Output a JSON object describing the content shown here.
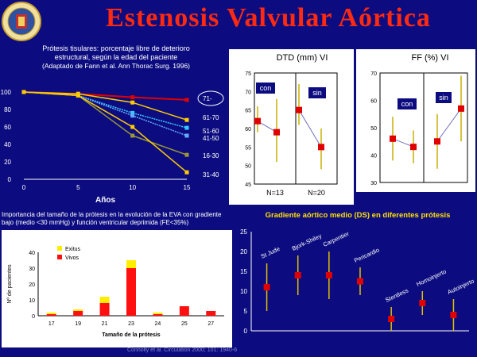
{
  "slide": {
    "title": "Estenosis  Valvular  Aórtica",
    "panel1_caption_line1": "Prótesis tisulares: porcentaje libre de deterioro",
    "panel1_caption_line2": "estructural, según la edad del paciente",
    "panel1_source": "(Adaptado de Fann et al. Ann Thorac Surg. 1996)",
    "panel2_caption": "Importancia del tamaño de la prótesis en la evolución de la EVA con gradiente bajo (medio <30 mmHg) y función ventricular deprimida (FE<35%)",
    "panel4_caption": "Gradiente aórtico medio (DS) en diferentes prótesis",
    "reference": "Connolly et al. Circulation 2000; 101: 1940-6"
  },
  "colors": {
    "background": "#0c0c80",
    "title": "#ff2a10",
    "panel": "#ffffff",
    "caption_yellow": "#ffe000"
  },
  "chart_data": [
    {
      "type": "line",
      "xlabel": "Años",
      "x": [
        0,
        5,
        10,
        15
      ],
      "xlim": [
        0,
        15
      ],
      "ylim": [
        0,
        100
      ],
      "yticks": [
        0,
        20,
        40,
        60,
        80,
        100
      ],
      "series": [
        {
          "name": "71-",
          "color": "#e00000",
          "values": [
            100,
            98,
            94,
            91
          ]
        },
        {
          "name": "61-70",
          "color": "#ffcc00",
          "values": [
            100,
            98,
            88,
            68
          ]
        },
        {
          "name": "51-60",
          "color": "#33ccff",
          "values": [
            100,
            96,
            76,
            59
          ]
        },
        {
          "name": "41-50",
          "color": "#66aaff",
          "values": [
            100,
            96,
            73,
            50
          ]
        },
        {
          "name": "16-30",
          "color": "#999933",
          "values": [
            100,
            96,
            50,
            28
          ]
        },
        {
          "name": "31-40",
          "color": "#ffcc00",
          "values": [
            100,
            96,
            60,
            8
          ]
        }
      ]
    },
    {
      "type": "bar",
      "xlabel": "Tamaño de la prótesis",
      "ylabel": "Nº de pacientes",
      "categories": [
        "17",
        "19",
        "21",
        "23",
        "24",
        "25",
        "27"
      ],
      "ylim": [
        0,
        40
      ],
      "yticks": [
        0,
        10,
        20,
        30,
        40
      ],
      "series": [
        {
          "name": "Exitus",
          "color": "#ffee00",
          "values": [
            1,
            1,
            4,
            5,
            1,
            0,
            0
          ]
        },
        {
          "name": "Vivos",
          "color": "#ff1010",
          "values": [
            1,
            3,
            8,
            30,
            1,
            6,
            3
          ]
        }
      ]
    },
    {
      "type": "scatter",
      "title": "DTD (mm) VI",
      "groups": [
        "con",
        "sin"
      ],
      "group_labels": [
        "N=13",
        "N=20"
      ],
      "ylim": [
        45,
        75
      ],
      "yticks": [
        45,
        50,
        55,
        60,
        65,
        70,
        75
      ],
      "points": [
        {
          "group": "con",
          "value": 62,
          "low": 59,
          "high": 66
        },
        {
          "group": "con",
          "value": 59,
          "low": 51,
          "high": 68
        },
        {
          "group": "sin",
          "value": 65,
          "low": 61,
          "high": 72
        },
        {
          "group": "sin",
          "value": 55,
          "low": 49,
          "high": 60
        }
      ]
    },
    {
      "type": "scatter",
      "title": "FF (%) VI",
      "groups": [
        "con",
        "sin"
      ],
      "ylim": [
        30,
        70
      ],
      "yticks": [
        30,
        40,
        50,
        60,
        70
      ],
      "points": [
        {
          "group": "con",
          "value": 46,
          "low": 38,
          "high": 54
        },
        {
          "group": "con",
          "value": 43,
          "low": 37,
          "high": 49
        },
        {
          "group": "sin",
          "value": 45,
          "low": 35,
          "high": 55
        },
        {
          "group": "sin",
          "value": 57,
          "low": 45,
          "high": 69
        }
      ]
    },
    {
      "type": "scatter",
      "title": "Gradiente aórtico medio (DS) en diferentes prótesis",
      "categories": [
        "St Jude",
        "Bjork-Shiley",
        "Carpentier",
        "Pericardio",
        "Stentless",
        "Homoinjerto",
        "Autoinjerto"
      ],
      "ylim": [
        0,
        25
      ],
      "yticks": [
        0,
        5,
        10,
        15,
        20,
        25
      ],
      "points": [
        {
          "label": "St Jude",
          "value": 11,
          "low": 5,
          "high": 17
        },
        {
          "label": "Bjork-Shiley",
          "value": 14,
          "low": 9,
          "high": 19
        },
        {
          "label": "Carpentier",
          "value": 14,
          "low": 8,
          "high": 20
        },
        {
          "label": "Pericardio",
          "value": 12.5,
          "low": 9,
          "high": 16
        },
        {
          "label": "Stentless",
          "value": 3,
          "low": 0,
          "high": 6
        },
        {
          "label": "Homoinjerto",
          "value": 7,
          "low": 4,
          "high": 10
        },
        {
          "label": "Autoinjerto",
          "value": 4,
          "low": 0,
          "high": 8
        }
      ]
    }
  ]
}
